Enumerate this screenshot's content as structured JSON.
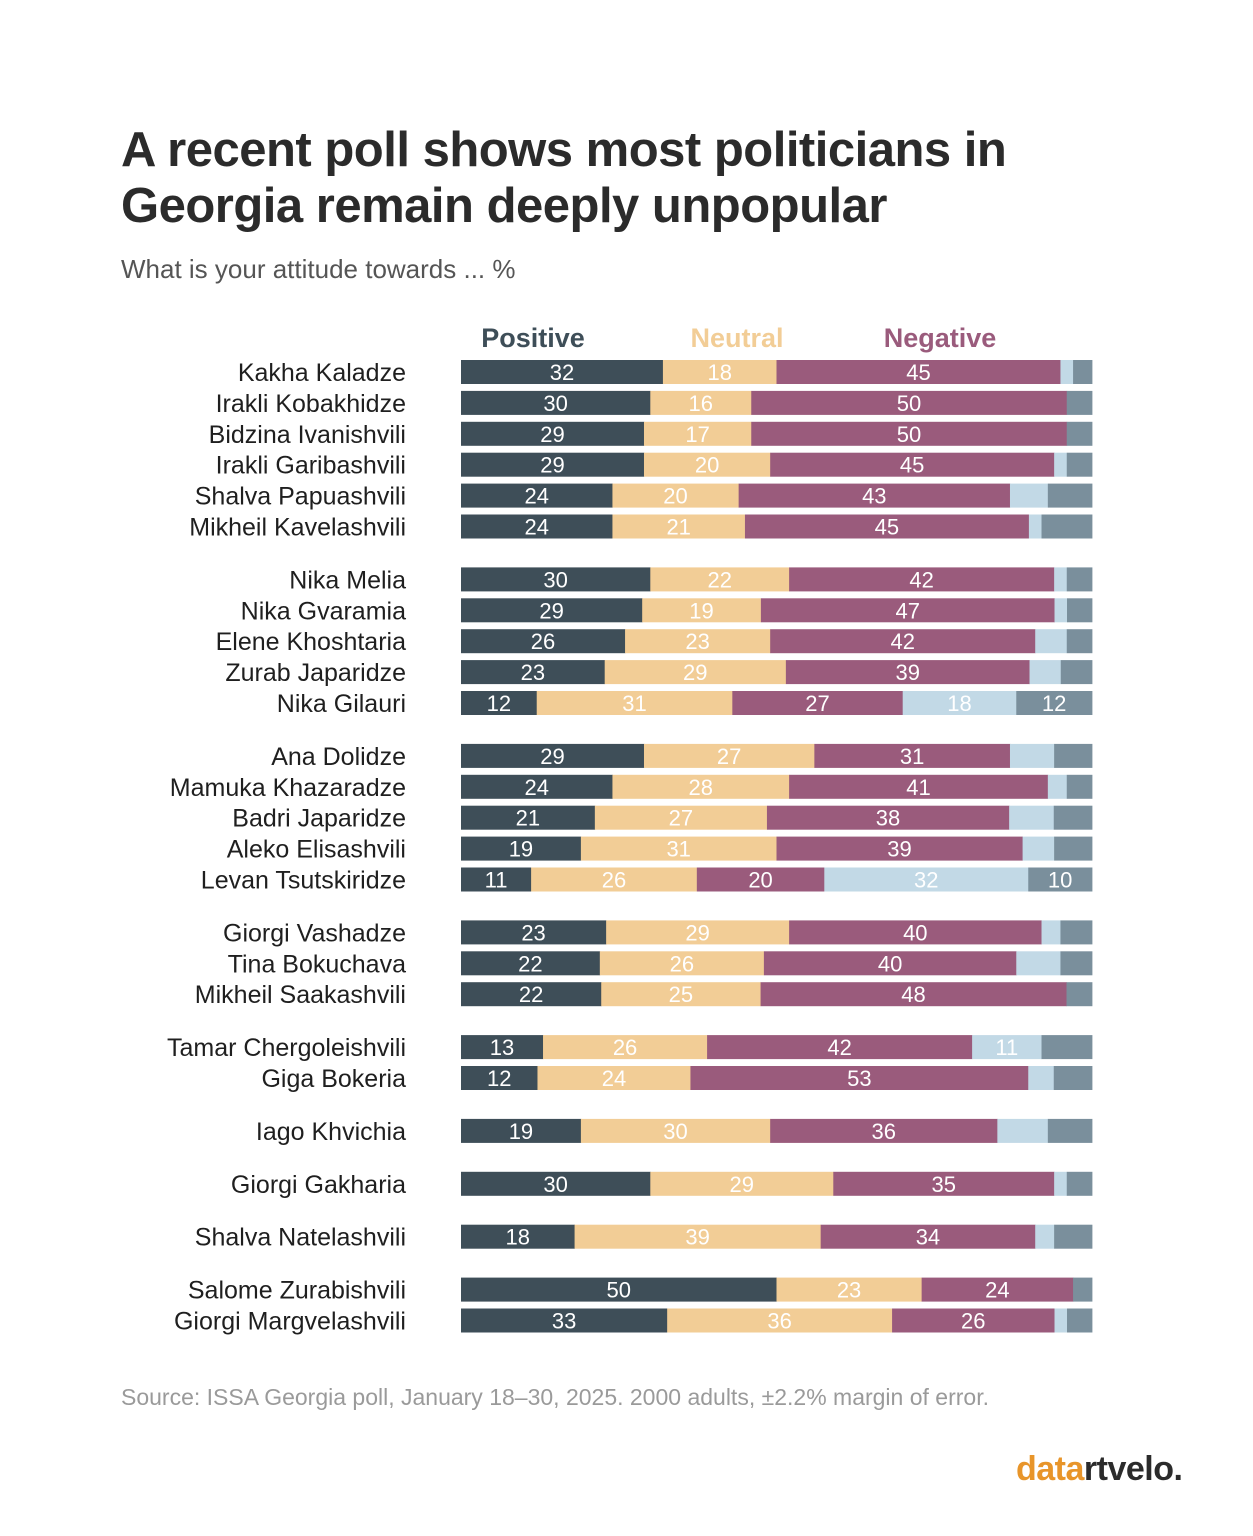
{
  "title": "A recent poll shows most politicians in Georgia remain deeply unpopular",
  "subtitle": "What is your attitude towards ... %",
  "source": "Source: ISSA Georgia poll, January 18–30, 2025. 2000 adults, ±2.2% margin of error.",
  "brand": {
    "part1": "data",
    "part2": "rtvelo."
  },
  "colors": {
    "positive": "#3e4e58",
    "neutral": "#f2cd96",
    "negative": "#9a5b7c",
    "other": "#c2d9e6",
    "other2": "#7a8f9c"
  },
  "chart_data": {
    "type": "bar",
    "orientation": "horizontal-stacked-100",
    "xlim": [
      0,
      100
    ],
    "legend": [
      {
        "name": "Positive",
        "color": "#3e4e58"
      },
      {
        "name": "Neutral",
        "color": "#f2cd96"
      },
      {
        "name": "Negative",
        "color": "#9a5b7c"
      }
    ],
    "groups": [
      {
        "rows": [
          {
            "name": "Kakha Kaladze",
            "values": [
              32,
              18,
              45,
              2,
              3
            ]
          },
          {
            "name": "Irakli Kobakhidze",
            "values": [
              30,
              16,
              50,
              0,
              4
            ]
          },
          {
            "name": "Bidzina Ivanishvili",
            "values": [
              29,
              17,
              50,
              0,
              4
            ]
          },
          {
            "name": "Irakli Garibashvili",
            "values": [
              29,
              20,
              45,
              2,
              4
            ]
          },
          {
            "name": "Shalva Papuashvili",
            "values": [
              24,
              20,
              43,
              6,
              7
            ]
          },
          {
            "name": "Mikheil Kavelashvili",
            "values": [
              24,
              21,
              45,
              2,
              8
            ]
          }
        ]
      },
      {
        "rows": [
          {
            "name": "Nika Melia",
            "values": [
              30,
              22,
              42,
              2,
              4
            ]
          },
          {
            "name": "Nika Gvaramia",
            "values": [
              29,
              19,
              47,
              2,
              4
            ]
          },
          {
            "name": "Elene Khoshtaria",
            "values": [
              26,
              23,
              42,
              5,
              4
            ]
          },
          {
            "name": "Zurab Japaridze",
            "values": [
              23,
              29,
              39,
              5,
              5
            ]
          },
          {
            "name": "Nika Gilauri",
            "values": [
              12,
              31,
              27,
              18,
              12
            ]
          }
        ]
      },
      {
        "rows": [
          {
            "name": "Ana Dolidze",
            "values": [
              29,
              27,
              31,
              7,
              6
            ]
          },
          {
            "name": "Mamuka Khazaradze",
            "values": [
              24,
              28,
              41,
              3,
              4
            ]
          },
          {
            "name": "Badri Japaridze",
            "values": [
              21,
              27,
              38,
              7,
              6
            ]
          },
          {
            "name": "Aleko Elisashvili",
            "values": [
              19,
              31,
              39,
              5,
              6
            ]
          },
          {
            "name": "Levan Tsutskiridze",
            "values": [
              11,
              26,
              20,
              32,
              10
            ]
          }
        ]
      },
      {
        "rows": [
          {
            "name": "Giorgi Vashadze",
            "values": [
              23,
              29,
              40,
              3,
              5
            ]
          },
          {
            "name": "Tina Bokuchava",
            "values": [
              22,
              26,
              40,
              7,
              5
            ]
          },
          {
            "name": "Mikheil Saakashvili",
            "values": [
              22,
              25,
              48,
              0,
              4
            ]
          }
        ]
      },
      {
        "rows": [
          {
            "name": "Tamar Chergoleishvili",
            "values": [
              13,
              26,
              42,
              11,
              8
            ]
          },
          {
            "name": "Giga Bokeria",
            "values": [
              12,
              24,
              53,
              4,
              6
            ]
          }
        ]
      },
      {
        "rows": [
          {
            "name": "Iago Khvichia",
            "values": [
              19,
              30,
              36,
              8,
              7
            ]
          }
        ]
      },
      {
        "rows": [
          {
            "name": "Giorgi Gakharia",
            "values": [
              30,
              29,
              35,
              2,
              4
            ]
          }
        ]
      },
      {
        "rows": [
          {
            "name": "Shalva Natelashvili",
            "values": [
              18,
              39,
              34,
              3,
              6
            ]
          }
        ]
      },
      {
        "rows": [
          {
            "name": "Salome Zurabishvili",
            "values": [
              50,
              23,
              24,
              0,
              3
            ]
          },
          {
            "name": "Giorgi Margvelashvili",
            "values": [
              33,
              36,
              26,
              2,
              4
            ]
          }
        ]
      }
    ]
  }
}
